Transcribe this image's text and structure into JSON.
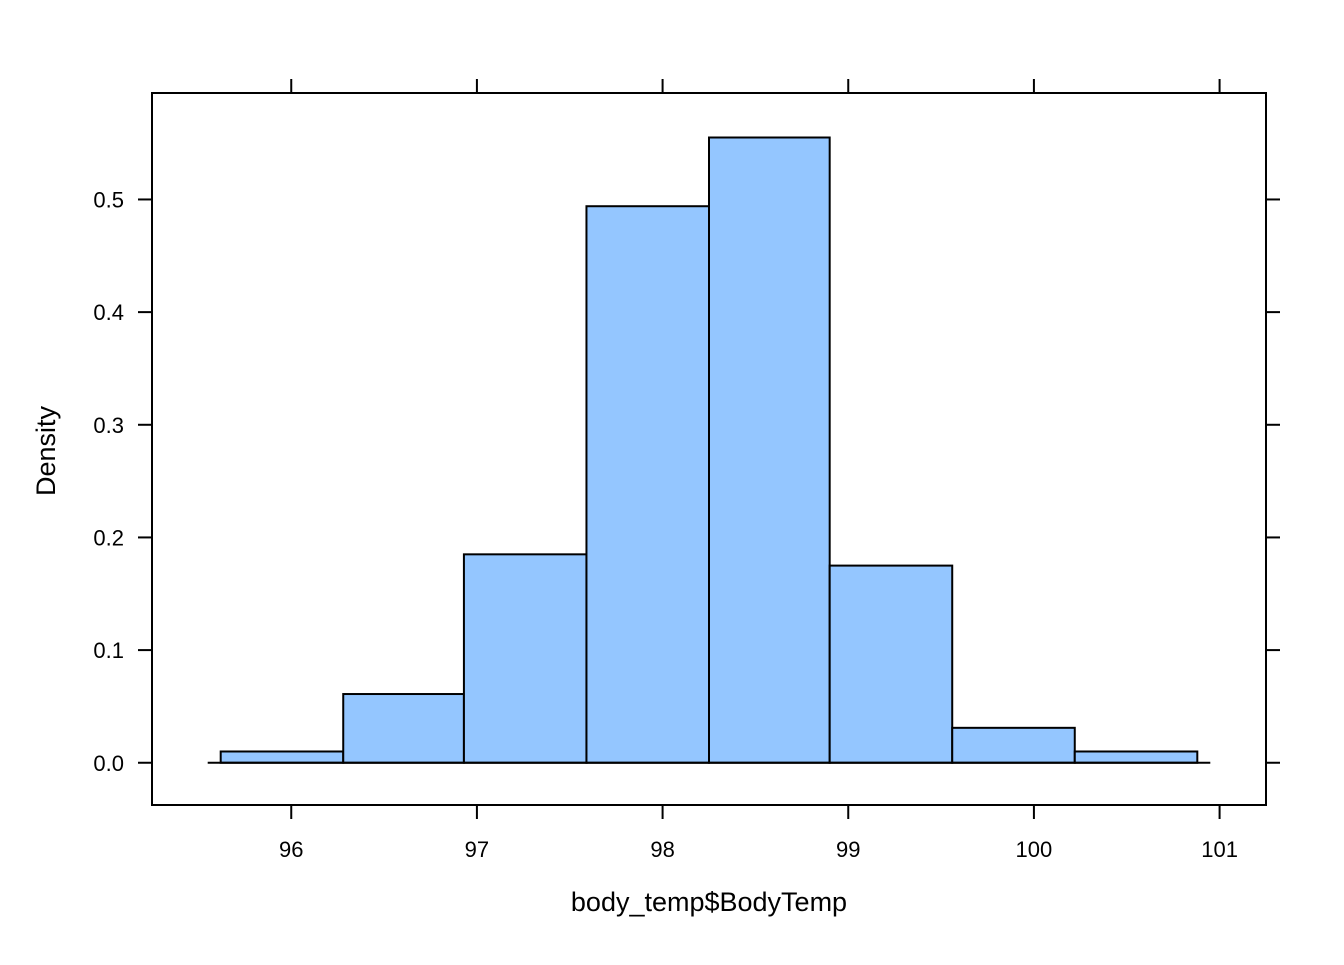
{
  "chart_data": {
    "type": "histogram",
    "title": "",
    "xlabel": "body_temp$BodyTemp",
    "ylabel": "Density",
    "xlim": [
      95.25,
      101.25
    ],
    "ylim": [
      -0.0375,
      0.5945
    ],
    "x_ticks": [
      96,
      97,
      98,
      99,
      100,
      101
    ],
    "x_tick_labels": [
      "96",
      "97",
      "98",
      "99",
      "100",
      "101"
    ],
    "y_ticks": [
      0.0,
      0.1,
      0.2,
      0.3,
      0.4,
      0.5
    ],
    "y_tick_labels": [
      "0.0",
      "0.1",
      "0.2",
      "0.3",
      "0.4",
      "0.5"
    ],
    "bins": [
      {
        "start": 95.62,
        "end": 96.28,
        "density": 0.01
      },
      {
        "start": 96.28,
        "end": 96.93,
        "density": 0.061
      },
      {
        "start": 96.93,
        "end": 97.59,
        "density": 0.185
      },
      {
        "start": 97.59,
        "end": 98.25,
        "density": 0.494
      },
      {
        "start": 98.25,
        "end": 98.9,
        "density": 0.555
      },
      {
        "start": 98.9,
        "end": 99.56,
        "density": 0.175
      },
      {
        "start": 99.56,
        "end": 100.22,
        "density": 0.031
      },
      {
        "start": 100.22,
        "end": 100.88,
        "density": 0.01
      }
    ],
    "baseline_range": [
      95.55,
      100.95
    ],
    "bar_color": "#94C6FF",
    "bar_stroke": "#000000",
    "grid": false
  }
}
